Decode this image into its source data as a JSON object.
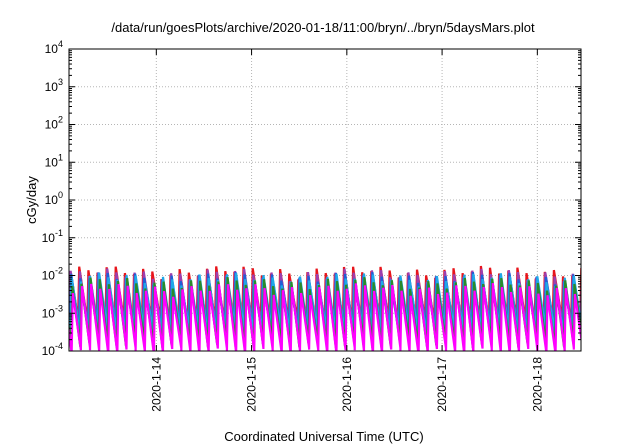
{
  "chart_data": {
    "type": "line",
    "title": "/data/run/goesPlots/archive/2020-01-18/11:00/bryn/../bryn/5daysMars.plot",
    "xlabel": "Coordinated Universal Time (UTC)",
    "ylabel": "cGy/day",
    "x_range": [
      "2020-01-13 02:00",
      "2020-01-18 11:00"
    ],
    "y_range": [
      0.0001,
      10000
    ],
    "y_scale": "log",
    "grid": true,
    "x_ticks": [
      "2020-1-14",
      "2020-1-15",
      "2020-1-16",
      "2020-1-17",
      "2020-1-18"
    ],
    "y_ticks": [
      {
        "base": "10",
        "exp": "4"
      },
      {
        "base": "10",
        "exp": "3"
      },
      {
        "base": "10",
        "exp": "2"
      },
      {
        "base": "10",
        "exp": "1"
      },
      {
        "base": "10",
        "exp": "0"
      },
      {
        "base": "10",
        "exp": "-1"
      },
      {
        "base": "10",
        "exp": "-2"
      },
      {
        "base": "10",
        "exp": "-3"
      },
      {
        "base": "10",
        "exp": "-4"
      }
    ],
    "series_colors": [
      "#e8151b",
      "#9c3fb0",
      "#1f5fd6",
      "#1fa8e8",
      "#2a8a2a",
      "#ff00ff"
    ],
    "series_profile": {
      "note_free_values": true,
      "period_hours": 2.3,
      "peak_cgy_per_day": [
        0.013,
        0.011,
        0.009,
        0.0085,
        0.0065,
        0.0045
      ],
      "trough_cgy_per_day": [
        0.0006,
        0.0005,
        0.0004,
        0.00035,
        0.00015,
        0.0001
      ]
    }
  }
}
